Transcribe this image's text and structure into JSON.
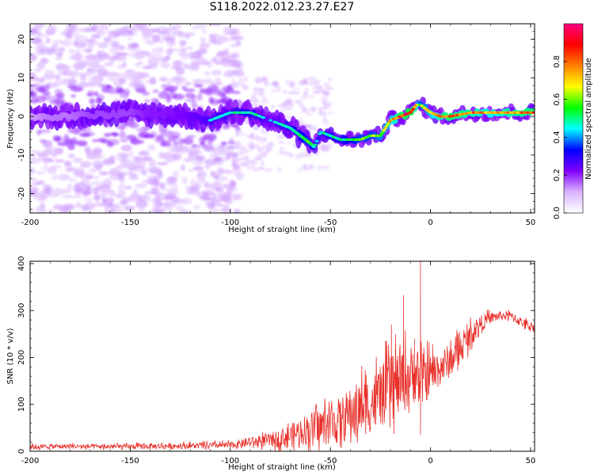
{
  "title": "S118.2022.012.23.27.E27",
  "chart_data": [
    {
      "type": "heatmap",
      "xlabel": "Height of straight line (km)",
      "ylabel": "Frequency (Hz)",
      "xlim": [
        -200,
        52
      ],
      "ylim": [
        -25,
        24
      ],
      "xticks": [
        "-200",
        "-150",
        "-100",
        "-50",
        "0",
        "50"
      ],
      "yticks": [
        "20",
        "10",
        "0",
        "-10",
        "-20"
      ],
      "colorbar": {
        "label": "Normalized spectral amplitude",
        "range": [
          0,
          1
        ],
        "ticks": [
          "0.0",
          "0.2",
          "0.4",
          "0.6",
          "0.8"
        ],
        "colors": [
          "#ffffff",
          "#d9b3ff",
          "#8000ff",
          "#0000ff",
          "#00ffff",
          "#00ff00",
          "#ffff00",
          "#ff8000",
          "#ff0000",
          "#ff0080"
        ]
      },
      "ridge": {
        "x": [
          -200,
          -190,
          -180,
          -170,
          -160,
          -150,
          -140,
          -130,
          -120,
          -110,
          -100,
          -95,
          -90,
          -85,
          -80,
          -75,
          -70,
          -65,
          -60,
          -58,
          -55,
          -50,
          -45,
          -40,
          -35,
          -30,
          -25,
          -20,
          -15,
          -10,
          -7,
          -5,
          0,
          5,
          10,
          20,
          30,
          40,
          52
        ],
        "freq": [
          0,
          0,
          0,
          0.5,
          0.5,
          1,
          0.5,
          0.5,
          0,
          -1,
          1,
          1,
          1,
          0,
          -1,
          -2,
          -3,
          -5,
          -7,
          -8,
          -4,
          -5,
          -6,
          -6,
          -6,
          -5,
          -5,
          -1,
          0,
          1,
          3,
          3,
          1,
          0,
          0,
          1,
          1,
          1,
          1
        ],
        "amplitude": [
          0.2,
          0.25,
          0.25,
          0.3,
          0.3,
          0.3,
          0.35,
          0.35,
          0.4,
          0.45,
          0.45,
          0.5,
          0.5,
          0.45,
          0.4,
          0.45,
          0.5,
          0.55,
          0.6,
          0.5,
          0.45,
          0.5,
          0.5,
          0.55,
          0.6,
          0.6,
          0.65,
          0.7,
          0.85,
          0.9,
          0.75,
          0.6,
          0.7,
          0.8,
          0.85,
          0.8,
          0.75,
          0.8,
          0.85
        ]
      }
    },
    {
      "type": "line",
      "xlabel": "Height of straight line (km)",
      "ylabel": "SNR (10 * v/v)",
      "xlim": [
        -200,
        52
      ],
      "ylim": [
        0,
        405
      ],
      "xticks": [
        "-200",
        "-150",
        "-100",
        "-50",
        "0",
        "50"
      ],
      "yticks": [
        "400",
        "300",
        "200",
        "100",
        "0"
      ],
      "series": [
        {
          "color": "#e8302a",
          "x": [
            -200,
            -180,
            -160,
            -140,
            -120,
            -100,
            -90,
            -80,
            -75,
            -70,
            -65,
            -60,
            -55,
            -50,
            -45,
            -40,
            -35,
            -30,
            -25,
            -20,
            -15,
            -10,
            -7,
            -5,
            -3,
            0,
            5,
            10,
            15,
            20,
            25,
            30,
            35,
            40,
            45,
            50,
            52
          ],
          "baseline": [
            9,
            10,
            9,
            10,
            11,
            12,
            18,
            22,
            25,
            30,
            40,
            45,
            48,
            55,
            60,
            75,
            85,
            95,
            110,
            125,
            140,
            155,
            160,
            140,
            150,
            160,
            175,
            190,
            215,
            245,
            270,
            283,
            288,
            287,
            275,
            265,
            262
          ],
          "noise_amplitude": [
            5,
            5,
            5,
            6,
            6,
            7,
            10,
            15,
            20,
            25,
            30,
            35,
            40,
            45,
            50,
            55,
            60,
            62,
            65,
            70,
            70,
            65,
            60,
            60,
            55,
            45,
            40,
            35,
            30,
            25,
            18,
            12,
            10,
            10,
            10,
            10,
            10
          ],
          "spikes": [
            {
              "x": -5,
              "y": 405
            },
            {
              "x": -5,
              "y": 35
            },
            {
              "x": -13.5,
              "y": 333
            },
            {
              "x": -19.5,
              "y": 270
            },
            {
              "x": -17.5,
              "y": 250
            },
            {
              "x": -8,
              "y": 240
            }
          ]
        }
      ]
    }
  ]
}
